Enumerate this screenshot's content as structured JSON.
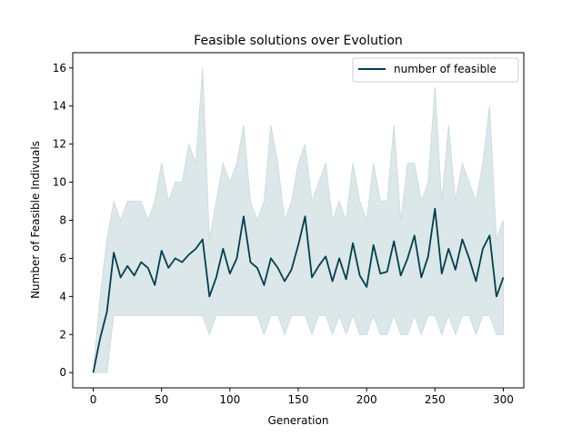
{
  "chart_data": {
    "type": "line",
    "title": "Feasible solutions over Evolution",
    "xlabel": "Generation",
    "ylabel": "Number of Feasible Indivuals",
    "xlim": [
      -15,
      315
    ],
    "ylim": [
      -0.8,
      16.8
    ],
    "xticks": [
      0,
      50,
      100,
      150,
      200,
      250,
      300
    ],
    "yticks": [
      0,
      2,
      4,
      6,
      8,
      10,
      12,
      14,
      16
    ],
    "grid": false,
    "legend": "top-right",
    "colors": {
      "line": "#003f4f",
      "band": "#dbe7e8",
      "band_edge": "#c9d9db"
    },
    "series": [
      {
        "name": "number of feasible",
        "x": [
          0,
          5,
          10,
          15,
          20,
          25,
          30,
          35,
          40,
          45,
          50,
          55,
          60,
          65,
          70,
          75,
          80,
          85,
          90,
          95,
          100,
          105,
          110,
          115,
          120,
          125,
          130,
          135,
          140,
          145,
          150,
          155,
          160,
          165,
          170,
          175,
          180,
          185,
          190,
          195,
          200,
          205,
          210,
          215,
          220,
          225,
          230,
          235,
          240,
          245,
          250,
          255,
          260,
          265,
          270,
          275,
          280,
          285,
          290,
          295,
          300
        ],
        "mean": [
          0,
          1.8,
          3.2,
          6.3,
          5.0,
          5.6,
          5.1,
          5.8,
          5.5,
          4.6,
          6.4,
          5.5,
          6.0,
          5.8,
          6.2,
          6.5,
          7.0,
          4.0,
          5.0,
          6.5,
          5.2,
          6.0,
          8.2,
          5.8,
          5.5,
          4.6,
          6.0,
          5.5,
          4.8,
          5.4,
          6.7,
          8.2,
          5.0,
          5.6,
          6.1,
          4.8,
          6.0,
          4.9,
          6.8,
          5.1,
          4.5,
          6.7,
          5.2,
          5.3,
          6.9,
          5.1,
          6.0,
          7.2,
          5.0,
          6.1,
          8.6,
          5.2,
          6.5,
          5.4,
          7.0,
          6.0,
          4.8,
          6.5,
          7.2,
          4.0,
          5.0
        ],
        "lower": [
          0,
          0,
          0,
          3,
          3,
          3,
          3,
          3,
          3,
          3,
          3,
          3,
          3,
          3,
          3,
          3,
          3,
          2,
          3,
          3,
          3,
          3,
          3,
          3,
          3,
          2,
          3,
          3,
          2,
          3,
          3,
          3,
          2,
          3,
          3,
          2,
          3,
          2,
          3,
          2,
          2,
          3,
          2,
          2,
          3,
          2,
          2,
          3,
          2,
          3,
          3,
          2,
          3,
          2,
          3,
          3,
          2,
          3,
          3,
          2,
          2
        ],
        "upper": [
          0,
          4,
          7,
          9,
          8,
          9,
          9,
          9,
          8,
          9,
          11,
          9,
          10,
          10,
          12,
          11,
          16,
          7,
          9,
          11,
          10,
          11,
          13,
          9,
          8,
          9,
          13,
          11,
          8,
          9,
          11,
          12,
          9,
          10,
          11,
          8,
          9,
          8,
          11,
          9,
          8,
          11,
          9,
          9,
          13,
          8,
          11,
          11,
          9,
          10,
          15,
          9,
          13,
          9,
          11,
          10,
          9,
          11,
          14,
          7,
          8
        ]
      }
    ]
  }
}
